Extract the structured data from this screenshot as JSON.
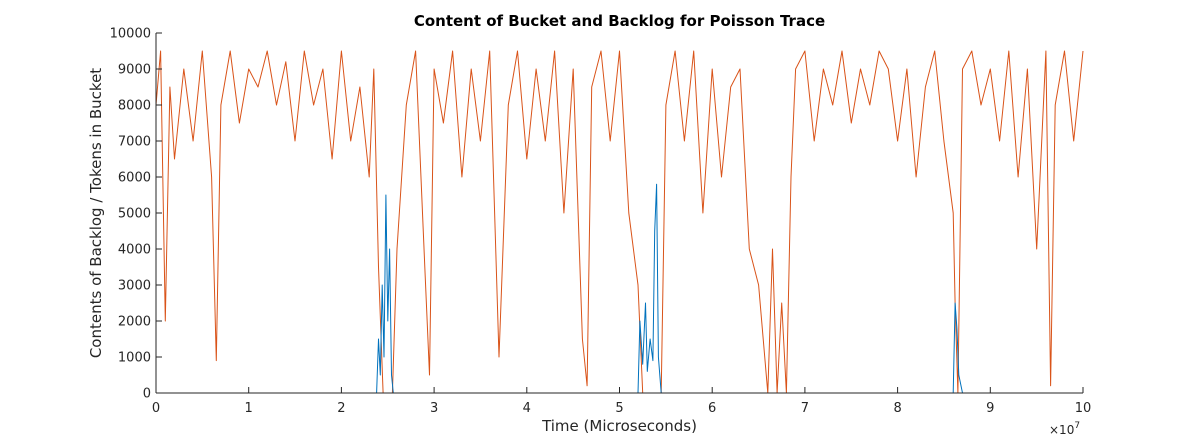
{
  "chart_data": {
    "type": "line",
    "title": "Content of Bucket and Backlog for Poisson Trace",
    "xlabel": "Time (Microseconds)",
    "ylabel": "Contents of Backlog / Tokens in Bucket",
    "xlim": [
      0,
      10
    ],
    "ylim": [
      0,
      10000
    ],
    "x_exponent_label": "×10",
    "x_exponent_power": "7",
    "x_ticks": [
      0,
      1,
      2,
      3,
      4,
      5,
      6,
      7,
      8,
      9,
      10
    ],
    "x_tick_labels": [
      "0",
      "1",
      "2",
      "3",
      "4",
      "5",
      "6",
      "7",
      "8",
      "9",
      "10"
    ],
    "y_ticks": [
      0,
      1000,
      2000,
      3000,
      4000,
      5000,
      6000,
      7000,
      8000,
      9000,
      10000
    ],
    "y_tick_labels": [
      "0",
      "1000",
      "2000",
      "3000",
      "4000",
      "5000",
      "6000",
      "7000",
      "8000",
      "9000",
      "10000"
    ],
    "grid": false,
    "legend": "none",
    "series": [
      {
        "color": "#D95319",
        "x": [
          0,
          0.05,
          0.1,
          0.15,
          0.2,
          0.3,
          0.4,
          0.5,
          0.6,
          0.65,
          0.7,
          0.8,
          0.9,
          1.0,
          1.1,
          1.2,
          1.3,
          1.4,
          1.5,
          1.6,
          1.7,
          1.8,
          1.9,
          2.0,
          2.1,
          2.2,
          2.3,
          2.35,
          2.4,
          2.45,
          2.5,
          2.55,
          2.6,
          2.7,
          2.8,
          2.9,
          2.95,
          3.0,
          3.1,
          3.2,
          3.3,
          3.4,
          3.5,
          3.6,
          3.7,
          3.8,
          3.9,
          4.0,
          4.1,
          4.2,
          4.3,
          4.4,
          4.5,
          4.6,
          4.65,
          4.7,
          4.8,
          4.9,
          5.0,
          5.1,
          5.2,
          5.25,
          5.3,
          5.35,
          5.4,
          5.45,
          5.5,
          5.6,
          5.7,
          5.8,
          5.9,
          6.0,
          6.1,
          6.2,
          6.3,
          6.4,
          6.5,
          6.55,
          6.6,
          6.65,
          6.7,
          6.75,
          6.8,
          6.85,
          6.9,
          7.0,
          7.1,
          7.2,
          7.3,
          7.4,
          7.5,
          7.6,
          7.7,
          7.8,
          7.9,
          8.0,
          8.1,
          8.2,
          8.3,
          8.4,
          8.5,
          8.6,
          8.62,
          8.65,
          8.7,
          8.8,
          8.9,
          9.0,
          9.1,
          9.2,
          9.3,
          9.4,
          9.5,
          9.6,
          9.65,
          9.7,
          9.8,
          9.9,
          10.0
        ],
        "values": [
          8000,
          9500,
          2000,
          8500,
          6500,
          9000,
          7000,
          9500,
          6000,
          900,
          8000,
          9500,
          7500,
          9000,
          8500,
          9500,
          8000,
          9200,
          7000,
          9500,
          8000,
          9000,
          6500,
          9500,
          7000,
          8500,
          6000,
          9000,
          3500,
          0,
          0,
          0,
          4000,
          8000,
          9500,
          3500,
          500,
          9000,
          7500,
          9500,
          6000,
          9000,
          7000,
          9500,
          1000,
          8000,
          9500,
          6500,
          9000,
          7000,
          9500,
          5000,
          9000,
          1500,
          200,
          8500,
          9500,
          7000,
          9500,
          5000,
          3000,
          0,
          0,
          0,
          0,
          0,
          8000,
          9500,
          7000,
          9500,
          5000,
          9000,
          6000,
          8500,
          9000,
          4000,
          3000,
          1500,
          0,
          4000,
          0,
          2500,
          0,
          6000,
          9000,
          9500,
          7000,
          9000,
          8000,
          9500,
          7500,
          9000,
          8000,
          9500,
          9000,
          7000,
          9000,
          6000,
          8500,
          9500,
          7000,
          5000,
          2500,
          0,
          9000,
          9500,
          8000,
          9000,
          7000,
          9500,
          6000,
          9000,
          4000,
          9500,
          200,
          8000,
          9500,
          7000,
          9500
        ]
      },
      {
        "color": "#0072BD",
        "x": [
          0,
          2.38,
          2.4,
          2.42,
          2.44,
          2.46,
          2.48,
          2.5,
          2.52,
          2.54,
          2.56,
          2.6,
          5.2,
          5.22,
          5.25,
          5.28,
          5.3,
          5.33,
          5.36,
          5.38,
          5.4,
          5.42,
          5.45,
          5.5,
          8.6,
          8.62,
          8.64,
          8.66,
          8.7,
          10.0
        ],
        "values": [
          0,
          0,
          1500,
          500,
          3000,
          1000,
          5500,
          2000,
          4000,
          500,
          0,
          0,
          0,
          2000,
          800,
          2500,
          600,
          1500,
          900,
          4500,
          5800,
          1000,
          0,
          0,
          0,
          2500,
          1800,
          500,
          0,
          0
        ]
      }
    ]
  }
}
